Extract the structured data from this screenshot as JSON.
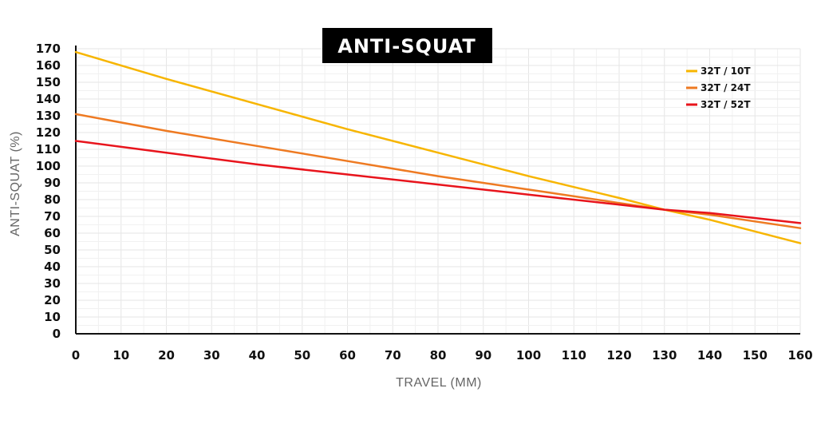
{
  "chart_data": {
    "type": "line",
    "title": "ANTI-SQUAT",
    "xlabel": "TRAVEL (MM)",
    "ylabel": "ANTI-SQUAT (%)",
    "xlim": [
      0,
      160
    ],
    "ylim": [
      0,
      170
    ],
    "x_ticks": [
      0,
      10,
      20,
      30,
      40,
      50,
      60,
      70,
      80,
      90,
      100,
      110,
      120,
      130,
      140,
      150,
      160
    ],
    "y_ticks": [
      0,
      10,
      20,
      30,
      40,
      50,
      60,
      70,
      80,
      90,
      100,
      110,
      120,
      130,
      140,
      150,
      160,
      170
    ],
    "grid": true,
    "legend_position": "top-right",
    "x": [
      0,
      20,
      40,
      60,
      80,
      100,
      120,
      130,
      140,
      160
    ],
    "series": [
      {
        "name": "32T / 10T",
        "color": "#f7b500",
        "values": [
          168,
          152,
          137,
          122,
          108,
          94,
          81,
          74,
          68,
          54
        ]
      },
      {
        "name": "32T / 24T",
        "color": "#ee7a22",
        "values": [
          131,
          121,
          112,
          103,
          94,
          86,
          78,
          74,
          71,
          63
        ]
      },
      {
        "name": "32T / 52T",
        "color": "#e8141c",
        "values": [
          115,
          108,
          101,
          95,
          89,
          83,
          77,
          74,
          72,
          66
        ]
      }
    ]
  }
}
